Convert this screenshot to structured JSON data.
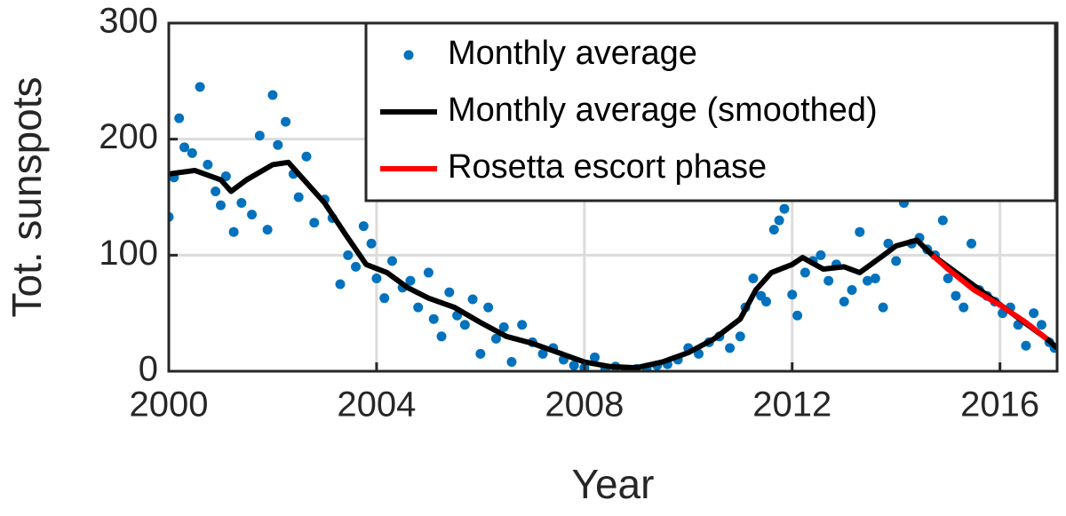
{
  "chart_data": {
    "type": "scatter",
    "x_label": "Year",
    "y_label": "Tot. sunspots",
    "xlim": [
      2000,
      2017.1
    ],
    "ylim": [
      0,
      300
    ],
    "xticks": [
      2000,
      2004,
      2008,
      2012,
      2016
    ],
    "yticks": [
      0,
      100,
      200,
      300
    ],
    "grid": true,
    "legend": "upper right",
    "series": [
      {
        "name": "Monthly average",
        "color": "#0072bd",
        "style": "markers",
        "x": [
          2000.0,
          2000.1,
          2000.2,
          2000.3,
          2000.45,
          2000.6,
          2000.75,
          2000.9,
          2001.0,
          2001.1,
          2001.25,
          2001.4,
          2001.6,
          2001.75,
          2001.9,
          2002.0,
          2002.1,
          2002.25,
          2002.4,
          2002.5,
          2002.65,
          2002.8,
          2003.0,
          2003.15,
          2003.3,
          2003.45,
          2003.6,
          2003.75,
          2003.9,
          2004.0,
          2004.15,
          2004.3,
          2004.5,
          2004.65,
          2004.8,
          2005.0,
          2005.1,
          2005.25,
          2005.4,
          2005.55,
          2005.7,
          2005.85,
          2006.0,
          2006.15,
          2006.3,
          2006.45,
          2006.6,
          2006.8,
          2007.0,
          2007.2,
          2007.4,
          2007.6,
          2007.8,
          2008.0,
          2008.2,
          2008.4,
          2008.6,
          2008.8,
          2009.0,
          2009.2,
          2009.4,
          2009.6,
          2009.8,
          2010.0,
          2010.2,
          2010.4,
          2010.6,
          2010.8,
          2011.0,
          2011.1,
          2011.25,
          2011.4,
          2011.5,
          2011.65,
          2011.75,
          2011.85,
          2012.0,
          2012.1,
          2012.25,
          2012.4,
          2012.55,
          2012.7,
          2012.85,
          2013.0,
          2013.15,
          2013.3,
          2013.45,
          2013.6,
          2013.75,
          2013.85,
          2014.0,
          2014.15,
          2014.3,
          2014.45,
          2014.6,
          2014.75,
          2014.9,
          2015.0,
          2015.15,
          2015.3,
          2015.45,
          2015.6,
          2015.75,
          2015.9,
          2016.05,
          2016.2,
          2016.35,
          2016.5,
          2016.65,
          2016.8,
          2016.95,
          2017.05
        ],
        "values": [
          133,
          167,
          218,
          193,
          188,
          245,
          178,
          155,
          143,
          168,
          120,
          145,
          135,
          203,
          122,
          238,
          195,
          215,
          170,
          150,
          185,
          128,
          148,
          132,
          75,
          100,
          90,
          125,
          110,
          80,
          63,
          95,
          72,
          78,
          55,
          85,
          45,
          30,
          68,
          48,
          40,
          62,
          15,
          55,
          28,
          38,
          8,
          40,
          25,
          15,
          20,
          10,
          5,
          3,
          12,
          2,
          4,
          1,
          2,
          3,
          5,
          6,
          10,
          20,
          15,
          25,
          30,
          20,
          30,
          55,
          80,
          65,
          60,
          122,
          130,
          140,
          66,
          48,
          85,
          95,
          100,
          78,
          92,
          60,
          70,
          120,
          78,
          80,
          55,
          110,
          95,
          145,
          110,
          115,
          105,
          100,
          130,
          80,
          65,
          55,
          110,
          70,
          65,
          60,
          50,
          55,
          40,
          22,
          50,
          40,
          25,
          20
        ]
      },
      {
        "name": "Monthly average (smoothed)",
        "color": "#000000",
        "style": "line",
        "x": [
          2000,
          2000.5,
          2001,
          2001.2,
          2001.5,
          2002,
          2002.3,
          2002.6,
          2003,
          2003.4,
          2003.8,
          2004.2,
          2004.6,
          2005,
          2005.5,
          2006,
          2006.5,
          2007,
          2007.5,
          2008,
          2008.5,
          2009,
          2009.5,
          2010,
          2010.5,
          2011,
          2011.3,
          2011.6,
          2012,
          2012.2,
          2012.6,
          2013,
          2013.3,
          2013.7,
          2014,
          2014.4,
          2014.7,
          2016.9,
          2017.1
        ],
        "values": [
          170,
          173,
          165,
          155,
          165,
          178,
          180,
          165,
          145,
          118,
          92,
          85,
          72,
          63,
          55,
          42,
          30,
          24,
          16,
          8,
          4,
          3,
          8,
          16,
          28,
          45,
          70,
          85,
          92,
          98,
          88,
          90,
          85,
          98,
          108,
          113,
          100,
          28,
          20
        ]
      },
      {
        "name": "Rosetta escort phase",
        "color": "#ff0000",
        "style": "line",
        "x": [
          2014.7,
          2015,
          2015.5,
          2016,
          2016.5,
          2016.9
        ],
        "values": [
          100,
          88,
          70,
          57,
          42,
          28
        ]
      }
    ]
  }
}
